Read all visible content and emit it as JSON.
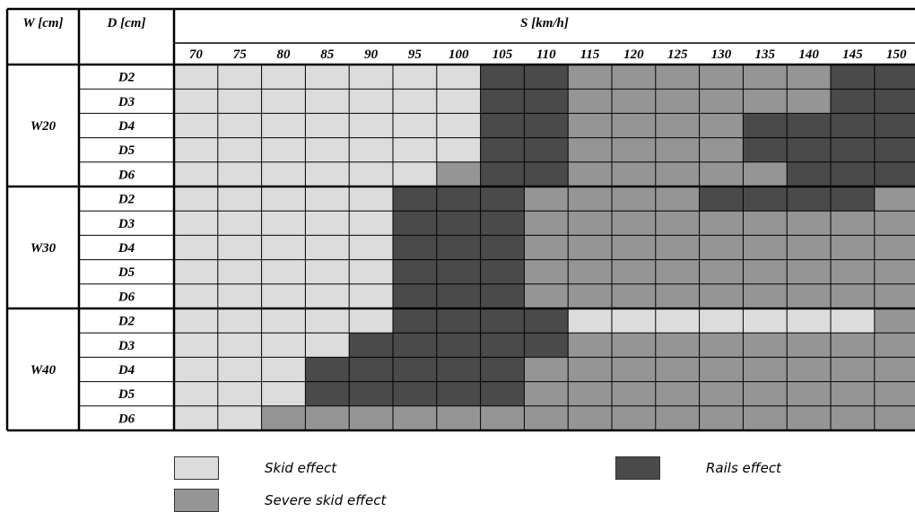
{
  "chart_data": {
    "type": "heatmap",
    "headers": {
      "w": "W [cm]",
      "d": "D [cm]",
      "s": "S [km/h]"
    },
    "speeds": [
      "70",
      "75",
      "80",
      "85",
      "90",
      "95",
      "100",
      "105",
      "110",
      "115",
      "120",
      "125",
      "130",
      "135",
      "140",
      "145",
      "150"
    ],
    "groups": [
      {
        "label": "W20",
        "rows": [
          {
            "label": "D2",
            "cells": [
              1,
              1,
              1,
              1,
              1,
              1,
              1,
              3,
              3,
              2,
              2,
              2,
              2,
              2,
              2,
              3,
              3
            ]
          },
          {
            "label": "D3",
            "cells": [
              1,
              1,
              1,
              1,
              1,
              1,
              1,
              3,
              3,
              2,
              2,
              2,
              2,
              2,
              2,
              3,
              3
            ]
          },
          {
            "label": "D4",
            "cells": [
              1,
              1,
              1,
              1,
              1,
              1,
              1,
              3,
              3,
              2,
              2,
              2,
              2,
              3,
              3,
              3,
              3
            ]
          },
          {
            "label": "D5",
            "cells": [
              1,
              1,
              1,
              1,
              1,
              1,
              1,
              3,
              3,
              2,
              2,
              2,
              2,
              3,
              3,
              3,
              3
            ]
          },
          {
            "label": "D6",
            "cells": [
              1,
              1,
              1,
              1,
              1,
              1,
              2,
              3,
              3,
              2,
              2,
              2,
              2,
              2,
              3,
              3,
              3
            ]
          }
        ]
      },
      {
        "label": "W30",
        "rows": [
          {
            "label": "D2",
            "cells": [
              1,
              1,
              1,
              1,
              1,
              3,
              3,
              3,
              2,
              2,
              2,
              2,
              3,
              3,
              3,
              3,
              2
            ]
          },
          {
            "label": "D3",
            "cells": [
              1,
              1,
              1,
              1,
              1,
              3,
              3,
              3,
              2,
              2,
              2,
              2,
              2,
              2,
              2,
              2,
              2
            ]
          },
          {
            "label": "D4",
            "cells": [
              1,
              1,
              1,
              1,
              1,
              3,
              3,
              3,
              2,
              2,
              2,
              2,
              2,
              2,
              2,
              2,
              2
            ]
          },
          {
            "label": "D5",
            "cells": [
              1,
              1,
              1,
              1,
              1,
              3,
              3,
              3,
              2,
              2,
              2,
              2,
              2,
              2,
              2,
              2,
              2
            ]
          },
          {
            "label": "D6",
            "cells": [
              1,
              1,
              1,
              1,
              1,
              3,
              3,
              3,
              2,
              2,
              2,
              2,
              2,
              2,
              2,
              2,
              2
            ]
          }
        ]
      },
      {
        "label": "W40",
        "rows": [
          {
            "label": "D2",
            "cells": [
              1,
              1,
              1,
              1,
              1,
              3,
              3,
              3,
              3,
              1,
              1,
              1,
              1,
              1,
              1,
              1,
              2
            ]
          },
          {
            "label": "D3",
            "cells": [
              1,
              1,
              1,
              1,
              3,
              3,
              3,
              3,
              3,
              2,
              2,
              2,
              2,
              2,
              2,
              2,
              2
            ]
          },
          {
            "label": "D4",
            "cells": [
              1,
              1,
              1,
              3,
              3,
              3,
              3,
              3,
              2,
              2,
              2,
              2,
              2,
              2,
              2,
              2,
              2
            ]
          },
          {
            "label": "D5",
            "cells": [
              1,
              1,
              1,
              3,
              3,
              3,
              3,
              3,
              2,
              2,
              2,
              2,
              2,
              2,
              2,
              2,
              2
            ]
          },
          {
            "label": "D6",
            "cells": [
              1,
              1,
              2,
              2,
              2,
              2,
              2,
              2,
              2,
              2,
              2,
              2,
              2,
              2,
              2,
              2,
              2
            ]
          }
        ]
      }
    ],
    "categories": [
      {
        "code": 1,
        "label": "Skid effect",
        "color": "#dcdcdc"
      },
      {
        "code": 2,
        "label": "Severe skid effect",
        "color": "#959595"
      },
      {
        "code": 3,
        "label": "Rails effect",
        "color": "#4a4a4a"
      }
    ]
  }
}
